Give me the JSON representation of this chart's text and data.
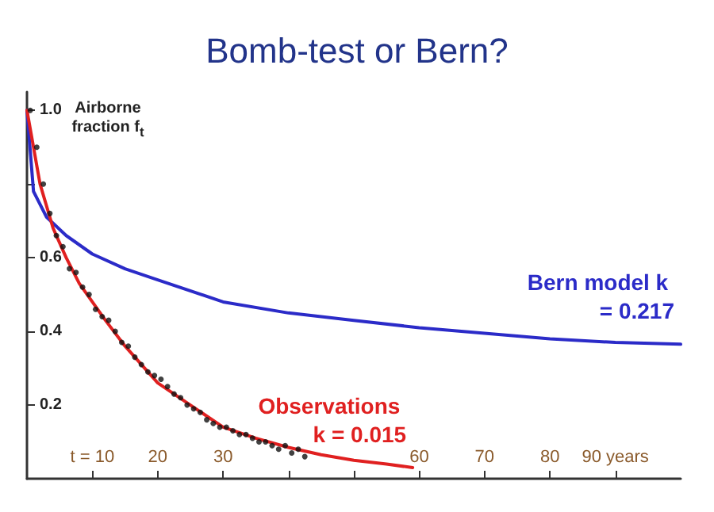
{
  "chart_data": {
    "type": "line",
    "title": "Bomb-test or Bern?",
    "ylabel": "Airborne fraction f$_{t}$",
    "xlim": [
      0,
      100
    ],
    "ylim": [
      0,
      1.05
    ],
    "xticks": [
      {
        "value": 10,
        "label": "t = 10"
      },
      20,
      30,
      {
        "value": 40,
        "label": null
      },
      {
        "value": 50,
        "label": null
      },
      60,
      70,
      80,
      {
        "value": 90,
        "label": "90 years"
      }
    ],
    "yticks": [
      0.2,
      0.4,
      0.6,
      {
        "value": 0.8,
        "label": null
      },
      {
        "value": 1.0,
        "label": "1.0"
      }
    ],
    "grid": false,
    "legend": false,
    "series": [
      {
        "name": "Bern model k = 0.217",
        "color": "#2b2bc8",
        "x": [
          0,
          1,
          3,
          6,
          10,
          15,
          20,
          30,
          40,
          50,
          60,
          70,
          80,
          90,
          100
        ],
        "values": [
          1.0,
          0.78,
          0.71,
          0.66,
          0.61,
          0.57,
          0.54,
          0.48,
          0.45,
          0.43,
          0.41,
          0.395,
          0.38,
          0.37,
          0.365
        ]
      },
      {
        "type": "scatter",
        "color": "#111111",
        "x": [
          0.5,
          1.5,
          2.5,
          3.5,
          4.5,
          5.5,
          6.5,
          7.5,
          8.5,
          9.5,
          10.5,
          11.5,
          12.5,
          13.5,
          14.5,
          15.5,
          16.5,
          17.5,
          18.5,
          19.5,
          20.5,
          21.5,
          22.5,
          23.5,
          24.5,
          25.5,
          26.5,
          27.5,
          28.5,
          29.5,
          30.5,
          31.5,
          32.5,
          33.5,
          34.5,
          35.5,
          36.5,
          37.5,
          38.5,
          39.5,
          40.5,
          41.5,
          42.5
        ],
        "values": [
          1.0,
          0.9,
          0.8,
          0.72,
          0.66,
          0.63,
          0.57,
          0.56,
          0.52,
          0.5,
          0.46,
          0.44,
          0.43,
          0.4,
          0.37,
          0.36,
          0.33,
          0.31,
          0.29,
          0.28,
          0.27,
          0.25,
          0.23,
          0.22,
          0.2,
          0.19,
          0.18,
          0.16,
          0.15,
          0.14,
          0.14,
          0.13,
          0.12,
          0.12,
          0.11,
          0.1,
          0.1,
          0.09,
          0.08,
          0.09,
          0.07,
          0.08,
          0.06
        ]
      },
      {
        "name": "Observations k = 0.015",
        "color": "#e02020",
        "x": [
          0,
          2,
          4,
          6,
          8,
          10,
          12,
          15,
          20,
          25,
          30,
          35,
          40,
          45,
          50,
          55,
          59
        ],
        "values": [
          1.0,
          0.8,
          0.68,
          0.6,
          0.53,
          0.48,
          0.43,
          0.36,
          0.26,
          0.2,
          0.14,
          0.11,
          0.085,
          0.065,
          0.05,
          0.04,
          0.03
        ]
      }
    ]
  }
}
